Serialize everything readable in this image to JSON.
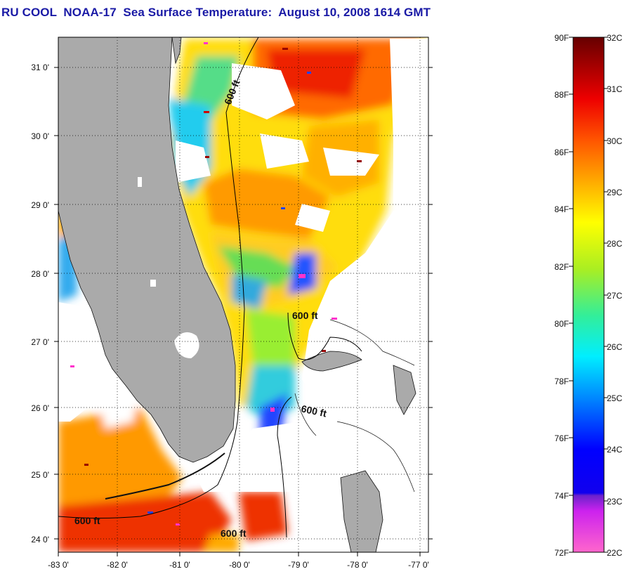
{
  "title": "RU COOL  NOAA-17  Sea Surface Temperature:  August 10, 2008 1614 GMT",
  "map": {
    "lat_labels": [
      "31 0'",
      "30 0'",
      "29 0'",
      "28 0'",
      "27 0'",
      "26 0'",
      "25 0'",
      "24 0'"
    ],
    "lon_labels": [
      "-83 0'",
      "-82 0'",
      "-81 0'",
      "-80 0'",
      "-79 0'",
      "-78 0'",
      "-77 0'"
    ],
    "contour_labels": [
      "600 ft",
      "600 ft",
      "600 ft",
      "600 ft",
      "600 ft"
    ],
    "colors": {
      "land": "#aaaaaa",
      "contour": "#000000",
      "grid": "#000000"
    }
  },
  "colorbar": {
    "fahrenheit_labels": [
      "90F",
      "88F",
      "86F",
      "84F",
      "82F",
      "80F",
      "78F",
      "76F",
      "74F",
      "72F"
    ],
    "celsius_labels": [
      "32C",
      "31C",
      "30C",
      "29C",
      "28C",
      "27C",
      "26C",
      "25C",
      "24C",
      "23C",
      "22C"
    ],
    "colors": [
      "#ff66cc",
      "#cc22ee",
      "#6a22cc",
      "#0000ff",
      "#0088ff",
      "#00eeff",
      "#33ee99",
      "#aaee22",
      "#ffff00",
      "#ffaa00",
      "#ff5500",
      "#ee0000",
      "#660000"
    ]
  }
}
